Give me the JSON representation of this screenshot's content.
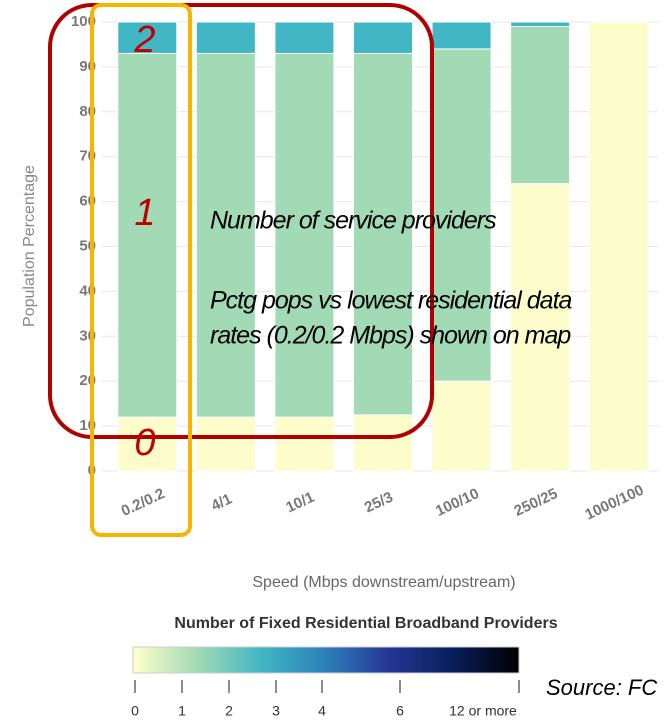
{
  "chart_data": {
    "type": "stacked_bar",
    "categories": [
      "0.2/0.2",
      "4/1",
      "10/1",
      "25/3",
      "100/10",
      "250/25",
      "1000/100"
    ],
    "series": [
      {
        "color": "#fdfdcc",
        "values": [
          12,
          12,
          12,
          12.5,
          20,
          64,
          100
        ]
      },
      {
        "color": "#a1dab4",
        "values": [
          81,
          81,
          81,
          80.5,
          74,
          35,
          0
        ]
      },
      {
        "color": "#41b6c4",
        "values": [
          7,
          7,
          7,
          7,
          6,
          1,
          0
        ]
      }
    ],
    "ylim": [
      0,
      100
    ],
    "yticks": [
      0,
      10,
      20,
      30,
      40,
      50,
      60,
      70,
      80,
      90,
      100
    ],
    "grid": true,
    "ylabel": "Population Percentage",
    "xlabel": "Speed (Mbps downstream/upstream)",
    "colorbar": {
      "title": "Number of Fixed Residential Broadband Providers",
      "colors": [
        "#ffffcc",
        "#a1dab4",
        "#41b6c4",
        "#2c7fb8",
        "#253494",
        "#081d58",
        "#000000"
      ],
      "ticks": [
        0,
        1,
        2,
        3,
        4,
        6,
        {
          "value": 12,
          "label": "12 or more"
        }
      ]
    },
    "bar_markers": [
      "2",
      "1",
      "0"
    ],
    "notes": [
      "Number of service providers",
      "Pctg pops vs lowest residential data",
      "rates (0.2/0.2 Mbps) shown on map"
    ],
    "source": "Source: FC"
  }
}
